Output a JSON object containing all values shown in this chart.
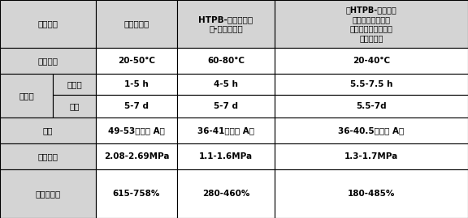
{
  "title": "",
  "col_headers": [
    "相关参数",
    "本发明配方",
    "HTPB-异氰酸酯体\n系-单一催化剂",
    "《HTPB-异氰酸酯\n黏结剂体系的室温\n固化及性能研究》室\n温固化配方"
  ],
  "rows": [
    {
      "label": "固化温度",
      "sub_label": null,
      "values": [
        "20-50°C",
        "60-80°C",
        "20-40°C"
      ],
      "merged": true
    },
    {
      "label": "结时间",
      "sub_label": "适用期",
      "values": [
        "1-5 h",
        "4-5 h",
        "5.5-7.5 h"
      ],
      "merged": false
    },
    {
      "label": null,
      "sub_label": "终凝",
      "values": [
        "5-7 d",
        "5-7 d",
        "5.5-7d"
      ],
      "merged": false
    },
    {
      "label": "硬度",
      "sub_label": null,
      "values": [
        "49-53（邵氏 A）",
        "36-41（邵氏 A）",
        "36-40.5（邵氏 A）"
      ],
      "merged": true
    },
    {
      "label": "抗拉强度",
      "sub_label": null,
      "values": [
        "2.08-2.69MPa",
        "1.1-1.6MPa",
        "1.3-1.7MPa"
      ],
      "merged": true
    },
    {
      "label": "断裂伸长率",
      "sub_label": null,
      "values": [
        "615-758%",
        "280-460%",
        "180-485%"
      ],
      "merged": true
    }
  ],
  "bg_header": "#d4d4d4",
  "bg_cell": "#ffffff",
  "border_color": "#000000",
  "text_color": "#000000",
  "font_size": 7.5,
  "header_font_size": 7.5
}
